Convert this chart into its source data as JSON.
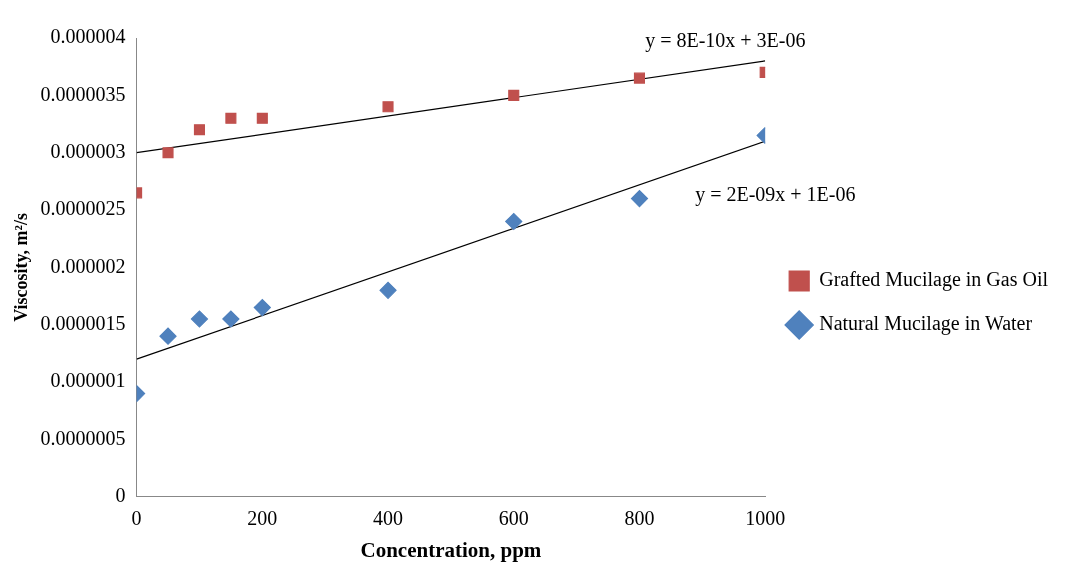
{
  "chart_data": {
    "type": "scatter",
    "xlabel": "Concentration, ppm",
    "ylabel": "Viscosity, m²/s",
    "xlim": [
      0,
      1000
    ],
    "xticks": [
      0,
      200,
      400,
      600,
      800,
      1000
    ],
    "ylim": [
      0,
      4e-06
    ],
    "yticks": [
      {
        "value": 0,
        "label": "0"
      },
      {
        "value": 5e-07,
        "label": "0.0000005"
      },
      {
        "value": 1e-06,
        "label": "0.000001"
      },
      {
        "value": 1.5e-06,
        "label": "0.0000015"
      },
      {
        "value": 2e-06,
        "label": "0.000002"
      },
      {
        "value": 2.5e-06,
        "label": "0.0000025"
      },
      {
        "value": 3e-06,
        "label": "0.000003"
      },
      {
        "value": 3.5e-06,
        "label": "0.0000035"
      },
      {
        "value": 4e-06,
        "label": "0.000004"
      }
    ],
    "grid": false,
    "legend": "right",
    "series": [
      {
        "name": "Grafted Mucilage in Gas Oil",
        "color": "#c0504d",
        "marker": "square",
        "x": [
          0,
          50,
          100,
          150,
          200,
          400,
          600,
          800,
          1000
        ],
        "values": [
          2.65e-06,
          3e-06,
          3.2e-06,
          3.3e-06,
          3.3e-06,
          3.4e-06,
          3.5e-06,
          3.65e-06,
          3.7e-06
        ]
      },
      {
        "name": "Natural Mucilage in Water",
        "color": "#4f81bd",
        "marker": "diamond",
        "x": [
          0,
          50,
          100,
          150,
          200,
          400,
          600,
          800,
          1000
        ],
        "values": [
          9e-07,
          1.4e-06,
          1.55e-06,
          1.55e-06,
          1.65e-06,
          1.8e-06,
          2.4e-06,
          2.6e-06,
          3.15e-06
        ]
      },
      {
        "type": "line",
        "color": "#000000",
        "marker": "none",
        "x": [
          0,
          1000
        ],
        "values": [
          3e-06,
          3.8e-06
        ]
      },
      {
        "type": "line",
        "color": "#000000",
        "marker": "none",
        "x": [
          0,
          1000
        ],
        "values": [
          1.2e-06,
          3.1e-06
        ]
      }
    ],
    "annotations": [
      "y = 8E-10x + 3E-06",
      "y = 2E-09x + 1E-06"
    ]
  }
}
